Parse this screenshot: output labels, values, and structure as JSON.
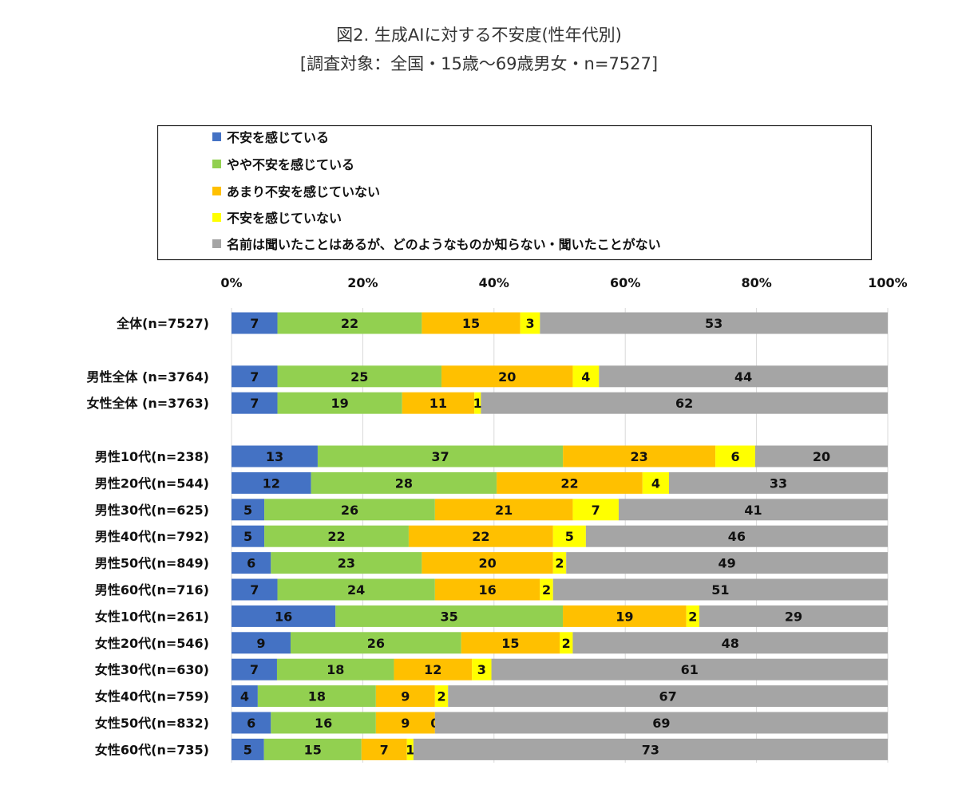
{
  "chart_data": {
    "type": "bar",
    "orientation": "horizontal-stacked-100",
    "title": "図2. 生成AIに対する不安度(性年代別)",
    "subtitle": "[調査対象：全国・15歳～69歳男女・n=7527]",
    "xlabel": "",
    "ylabel": "",
    "xlim": [
      0,
      100
    ],
    "x_ticks": [
      "0%",
      "20%",
      "40%",
      "60%",
      "80%",
      "100%"
    ],
    "grid": true,
    "legend_position": "top",
    "colors": [
      "#4472C4",
      "#92D050",
      "#FFC000",
      "#FFFF00",
      "#A5A5A5"
    ],
    "series_names": [
      "不安を感じている",
      "やや不安を感じている",
      "あまり不安を感じていない",
      "不安を感じていない",
      "名前は聞いたことはあるが、どのようなものか知らない・聞いたことがない"
    ],
    "categories": [
      "全体(n=7527)",
      "男性全体 (n=3764)",
      "女性全体 (n=3763)",
      "男性10代(n=238)",
      "男性20代(n=544)",
      "男性30代(n=625)",
      "男性40代(n=792)",
      "男性50代(n=849)",
      "男性60代(n=716)",
      "女性10代(n=261)",
      "女性20代(n=546)",
      "女性30代(n=630)",
      "女性40代(n=759)",
      "女性50代(n=832)",
      "女性60代(n=735)"
    ],
    "values": [
      [
        7,
        22,
        15,
        3,
        53
      ],
      [
        7,
        25,
        20,
        4,
        44
      ],
      [
        7,
        19,
        11,
        1,
        62
      ],
      [
        13,
        37,
        23,
        6,
        20
      ],
      [
        12,
        28,
        22,
        4,
        33
      ],
      [
        5,
        26,
        21,
        7,
        41
      ],
      [
        5,
        22,
        22,
        5,
        46
      ],
      [
        6,
        23,
        20,
        2,
        49
      ],
      [
        7,
        24,
        16,
        2,
        51
      ],
      [
        16,
        35,
        19,
        2,
        29
      ],
      [
        9,
        26,
        15,
        2,
        48
      ],
      [
        7,
        18,
        12,
        3,
        61
      ],
      [
        4,
        18,
        9,
        2,
        67
      ],
      [
        6,
        16,
        9,
        0,
        69
      ],
      [
        5,
        15,
        7,
        1,
        73
      ]
    ]
  }
}
